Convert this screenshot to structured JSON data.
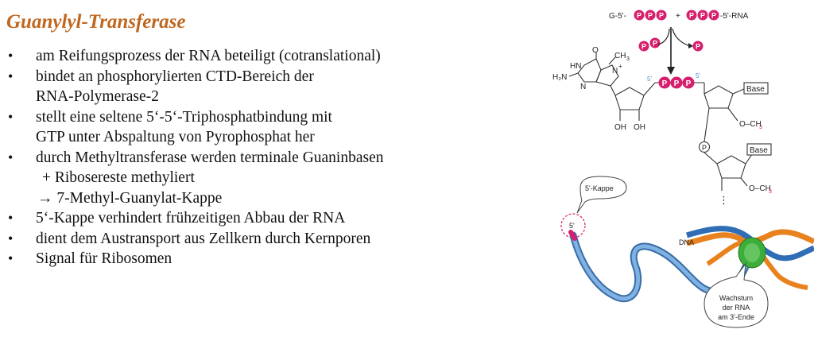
{
  "title": "Guanylyl-Transferase",
  "bullets": [
    {
      "lines": [
        "am Reifungsprozess der RNA beteiligt (cotranslational)"
      ]
    },
    {
      "lines": [
        "bindet an phosphorylierten CTD-Bereich der",
        "RNA-Polymerase-2"
      ]
    },
    {
      "lines": [
        "stellt eine seltene 5‘-5‘-Triphosphatbindung mit",
        "GTP unter Abspaltung von Pyrophosphat her"
      ]
    },
    {
      "lines": [
        "durch Methyltransferase werden terminale Guaninbasen",
        "+ Ribosereste methyliert",
        "→ 7-Methyl-Guanylat-Kappe"
      ]
    },
    {
      "lines": [
        "5‘-Kappe verhindert frühzeitigen Abbau der RNA"
      ]
    },
    {
      "lines": [
        "dient dem Austransport aus Zellkern durch Kernporen"
      ]
    },
    {
      "lines": [
        "Signal für Ribosomen"
      ]
    }
  ],
  "diagram": {
    "reaction": {
      "left_prefix": "G-5'-",
      "plus": "+",
      "right_suffix": "-5'-RNA",
      "phosphate": "P"
    },
    "guanine": {
      "o": "O",
      "ch3": "CH",
      "ch3_sub": "3",
      "n_plus": "N",
      "plus_sign": "+",
      "hn": "HN",
      "n": "N",
      "h2n": "H₂N",
      "five_prime": "5'",
      "oh_left": "OH",
      "oh_right": "OH"
    },
    "riboses": {
      "base_label": "Base",
      "och3": "O–CH",
      "och3_sub": "3",
      "five_prime": "5'",
      "p": "P",
      "dots": "⋮"
    },
    "transcription": {
      "cap_label": "5'-Kappe",
      "five_prime": "5'",
      "dna_label": "DNA",
      "growth_label": [
        "Wachstum",
        "der RNA",
        "am 3'-Ende"
      ]
    },
    "colors": {
      "phosphate": "#d61f6d",
      "rna": "#4f8ccf",
      "dna_orange": "#e8821e",
      "dna_blue": "#2f6db5",
      "polymerase": "#3cae3a",
      "cap_circle": "#d61f6d"
    }
  }
}
